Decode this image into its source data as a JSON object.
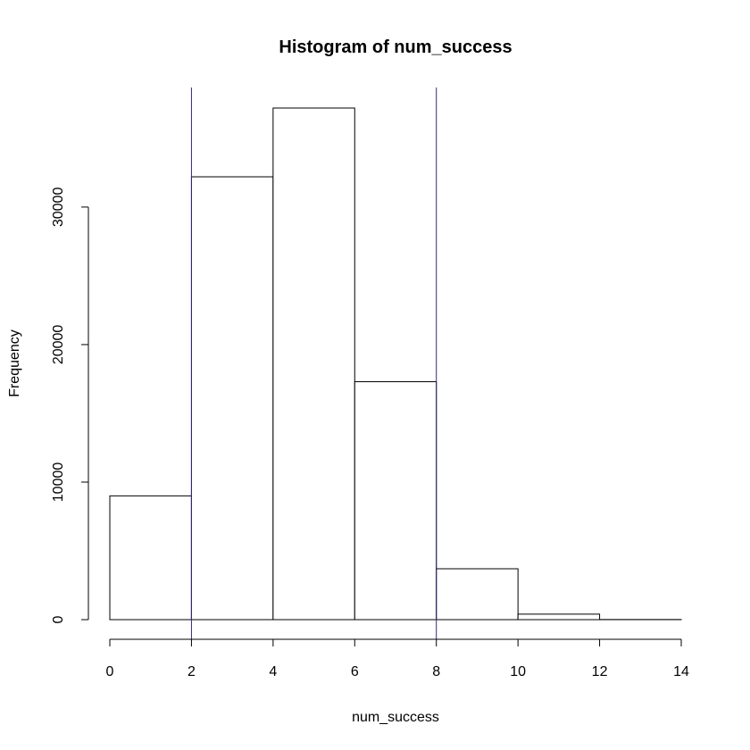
{
  "chart_data": {
    "type": "bar",
    "title": "Histogram of num_success",
    "xlabel": "num_success",
    "ylabel": "Frequency",
    "bins": [
      {
        "start": 0,
        "end": 2,
        "count": 9000
      },
      {
        "start": 2,
        "end": 4,
        "count": 32200
      },
      {
        "start": 4,
        "end": 6,
        "count": 37200
      },
      {
        "start": 6,
        "end": 8,
        "count": 17300
      },
      {
        "start": 8,
        "end": 10,
        "count": 3700
      },
      {
        "start": 10,
        "end": 12,
        "count": 400
      },
      {
        "start": 12,
        "end": 14,
        "count": 10
      }
    ],
    "xlim": [
      0,
      14
    ],
    "ylim": [
      0,
      37200
    ],
    "xticks": [
      0,
      2,
      4,
      6,
      8,
      10,
      12,
      14
    ],
    "yticks": [
      0,
      10000,
      20000,
      30000
    ],
    "xtick_labels": [
      "0",
      "2",
      "4",
      "6",
      "8",
      "10",
      "12",
      "14"
    ],
    "ytick_labels": [
      "0",
      "10000",
      "20000",
      "30000"
    ],
    "reference_lines": [
      {
        "x": 2,
        "color": "#2b2b7a"
      },
      {
        "x": 8,
        "color": "#2b2b7a"
      }
    ],
    "grid": false,
    "legend": "none"
  }
}
